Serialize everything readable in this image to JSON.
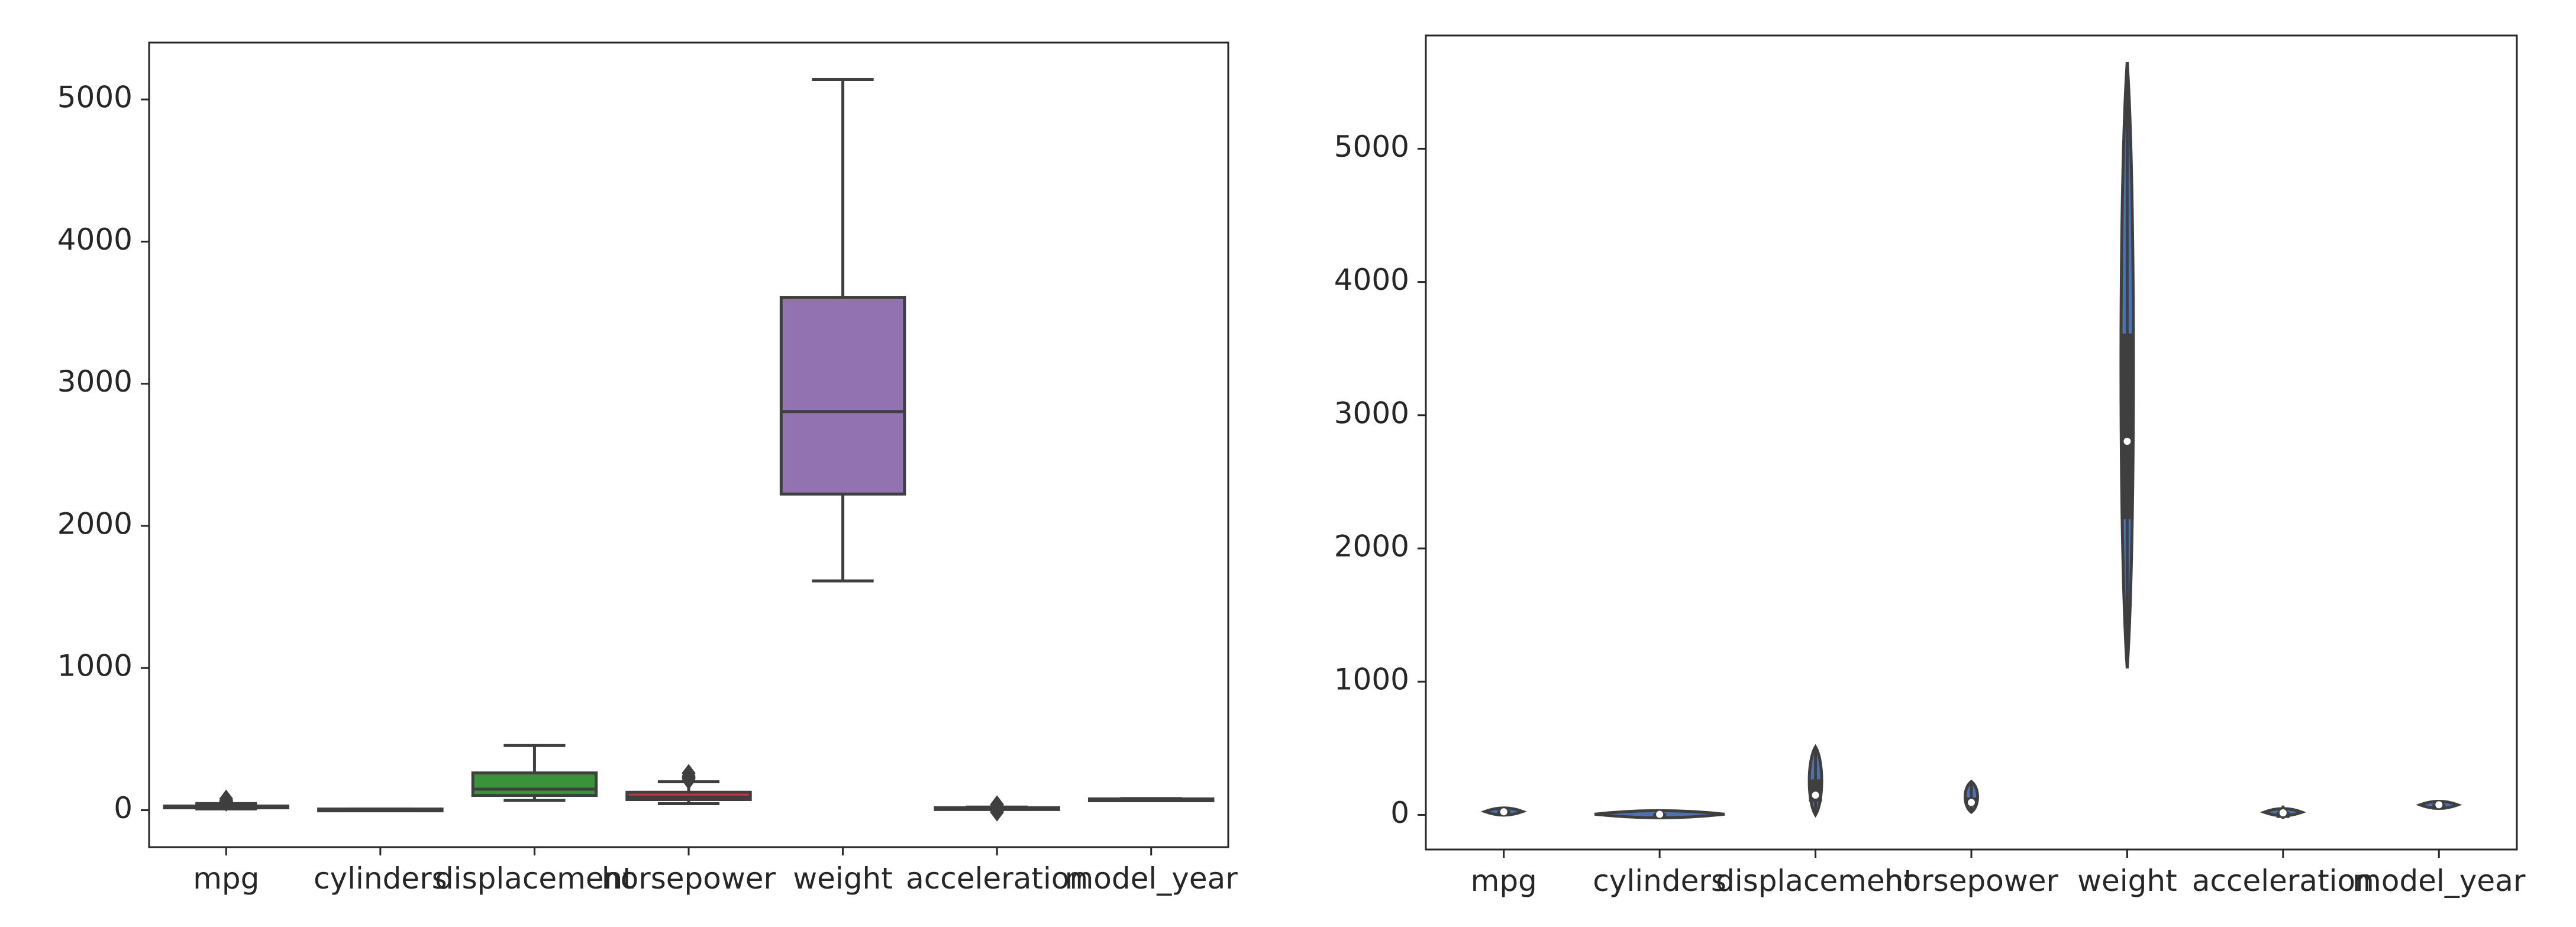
{
  "chart_data": [
    {
      "type": "box",
      "title": "",
      "xlabel": "",
      "ylabel": "",
      "ylim": [
        -260,
        5400
      ],
      "yticks": [
        0,
        1000,
        2000,
        3000,
        4000,
        5000
      ],
      "categories": [
        "mpg",
        "cylinders",
        "displacement",
        "horsepower",
        "weight",
        "acceleration",
        "model_year"
      ],
      "boxes": [
        {
          "category": "mpg",
          "whisker_low": 9,
          "q1": 17.5,
          "median": 23,
          "q3": 29,
          "whisker_high": 46.6,
          "outliers": [
            55,
            62,
            70,
            80
          ],
          "color": "#3a74b0"
        },
        {
          "category": "cylinders",
          "whisker_low": 3,
          "q1": 4,
          "median": 4,
          "q3": 8,
          "whisker_high": 8,
          "outliers": [],
          "color": "#dd8452"
        },
        {
          "category": "displacement",
          "whisker_low": 68,
          "q1": 104,
          "median": 148,
          "q3": 262,
          "whisker_high": 455,
          "outliers": [],
          "color": "#3a923a"
        },
        {
          "category": "horsepower",
          "whisker_low": 46,
          "q1": 75,
          "median": 93,
          "q3": 126,
          "whisker_high": 200,
          "outliers": [
            210,
            225,
            230,
            240,
            260
          ],
          "color": "#c03d3e"
        },
        {
          "category": "weight",
          "whisker_low": 1613,
          "q1": 2224,
          "median": 2804,
          "q3": 3608,
          "whisker_high": 5140,
          "outliers": [],
          "color": "#9372b2"
        },
        {
          "category": "acceleration",
          "whisker_low": 8,
          "q1": 13.8,
          "median": 15.5,
          "q3": 17.2,
          "whisker_high": 22.2,
          "outliers": [
            -15,
            -5,
            30,
            40
          ],
          "color": "#845b53"
        },
        {
          "category": "model_year",
          "whisker_low": 70,
          "q1": 73,
          "median": 76,
          "q3": 79,
          "whisker_high": 82,
          "outliers": [],
          "color": "#d684bd"
        }
      ]
    },
    {
      "type": "violin",
      "title": "",
      "xlabel": "",
      "ylabel": "",
      "ylim": [
        -260,
        5850
      ],
      "yticks": [
        0,
        1000,
        2000,
        3000,
        4000,
        5000
      ],
      "categories": [
        "mpg",
        "cylinders",
        "displacement",
        "horsepower",
        "weight",
        "acceleration",
        "model_year"
      ],
      "violins": [
        {
          "category": "mpg",
          "min": -10,
          "q1": 17.5,
          "median": 23,
          "q3": 29,
          "max": 60
        },
        {
          "category": "cylinders",
          "min": -20,
          "q1": 4,
          "median": 4,
          "q3": 8,
          "max": 30
        },
        {
          "category": "displacement",
          "min": 0,
          "q1": 104,
          "median": 148,
          "q3": 262,
          "max": 510
        },
        {
          "category": "horsepower",
          "min": 20,
          "q1": 75,
          "median": 93,
          "q3": 126,
          "max": 250
        },
        {
          "category": "weight",
          "min": 1100,
          "q1": 2224,
          "median": 2804,
          "q3": 3608,
          "max": 5650
        },
        {
          "category": "acceleration",
          "min": -30,
          "q1": 13.8,
          "median": 15.5,
          "q3": 17.2,
          "max": 70
        },
        {
          "category": "model_year",
          "min": 55,
          "q1": 73,
          "median": 76,
          "q3": 79,
          "max": 95
        }
      ]
    }
  ]
}
